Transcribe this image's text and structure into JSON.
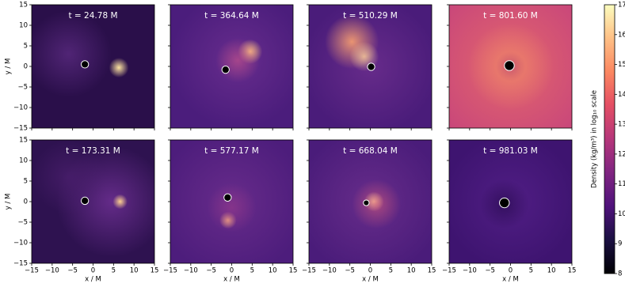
{
  "chart_data": {
    "type": "heatmap-grid",
    "xlabel": "x / M",
    "ylabel": "y / M",
    "xlim": [
      -15,
      15
    ],
    "ylim": [
      -15,
      15
    ],
    "xticks": [
      {
        "value": -15,
        "label": "−15"
      },
      {
        "value": -10,
        "label": "−10"
      },
      {
        "value": -5,
        "label": "−5"
      },
      0,
      5,
      10,
      15
    ],
    "yticks": [
      {
        "value": -15,
        "label": "−15"
      },
      {
        "value": -10,
        "label": "−10"
      },
      {
        "value": -5,
        "label": "−5"
      },
      0,
      5,
      10,
      15
    ],
    "panels": [
      {
        "title": "t = 24.78 M",
        "hole": {
          "x": -2,
          "y": 0.5,
          "r": 0.9
        }
      },
      {
        "title": "t = 364.64 M",
        "hole": {
          "x": -1.5,
          "y": -0.8,
          "r": 0.9
        }
      },
      {
        "title": "t = 510.29 M",
        "hole": {
          "x": 0.2,
          "y": -0.1,
          "r": 0.9
        }
      },
      {
        "title": "t = 801.60 M",
        "hole": {
          "x": -0.3,
          "y": 0.2,
          "r": 1.2
        }
      },
      {
        "title": "t = 173.31 M",
        "hole": {
          "x": -2,
          "y": 0.2,
          "r": 0.9
        }
      },
      {
        "title": "t = 577.17 M",
        "hole": {
          "x": -1,
          "y": 1,
          "r": 0.9
        }
      },
      {
        "title": "t = 668.04 M",
        "hole": {
          "x": -1,
          "y": -0.3,
          "r": 0.7
        }
      },
      {
        "title": "t = 981.03 M",
        "hole": {
          "x": -1.5,
          "y": -0.3,
          "r": 1.2
        }
      }
    ],
    "colorbar": {
      "label": "Density (kg/m³) in log₁₀ scale",
      "lim": [
        8,
        17
      ],
      "ticks": [
        8,
        9,
        10,
        11,
        12,
        13,
        14,
        15,
        16,
        17
      ]
    }
  }
}
